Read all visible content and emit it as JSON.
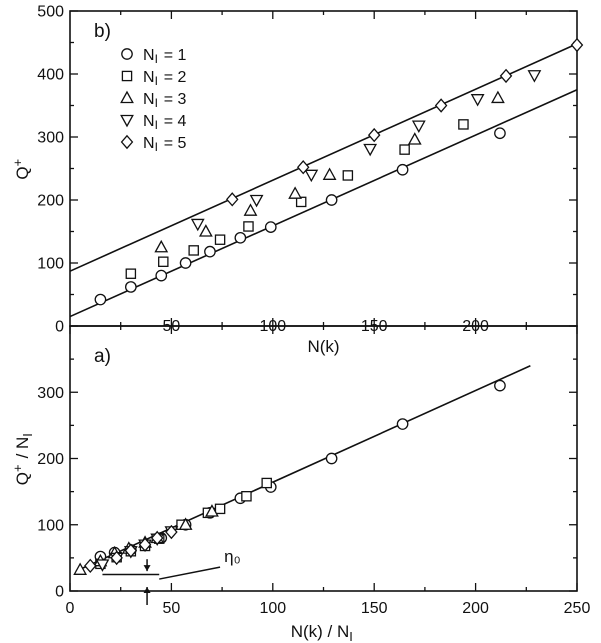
{
  "chart_data": [
    {
      "panel": "b)",
      "type": "scatter",
      "xlabel": "N(k)",
      "ylabel": "Q+",
      "xlim": [
        0,
        250
      ],
      "ylim": [
        0,
        500
      ],
      "xticks": [
        50,
        100,
        150,
        200
      ],
      "yticks": [
        0,
        100,
        200,
        300,
        400,
        500
      ],
      "legend_position": "top-left",
      "series": [
        {
          "name": "N_I = 1",
          "marker": "circle",
          "x": [
            15,
            30,
            45,
            57,
            69,
            84,
            99,
            129,
            164,
            212
          ],
          "y": [
            42,
            62,
            80,
            100,
            118,
            140,
            157,
            200,
            248,
            306
          ]
        },
        {
          "name": "N_I = 2",
          "marker": "square",
          "x": [
            30,
            46,
            61,
            74,
            88,
            114,
            137,
            165,
            194
          ],
          "y": [
            83,
            102,
            120,
            137,
            158,
            197,
            239,
            280,
            320
          ]
        },
        {
          "name": "N_I = 3",
          "marker": "triangle-up",
          "x": [
            45,
            67,
            89,
            111,
            128,
            170,
            211
          ],
          "y": [
            125,
            150,
            183,
            210,
            240,
            296,
            362
          ]
        },
        {
          "name": "N_I = 4",
          "marker": "triangle-down",
          "x": [
            63,
            92,
            119,
            148,
            172,
            201,
            229
          ],
          "y": [
            162,
            200,
            240,
            281,
            318,
            360,
            398
          ]
        },
        {
          "name": "N_I = 5",
          "marker": "diamond",
          "x": [
            80,
            115,
            150,
            183,
            215,
            250
          ],
          "y": [
            201,
            252,
            303,
            350,
            397,
            446
          ]
        }
      ],
      "lines": [
        {
          "x": [
            0,
            250
          ],
          "y": [
            87,
            448
          ]
        },
        {
          "x": [
            0,
            250
          ],
          "y": [
            15,
            375
          ]
        }
      ]
    },
    {
      "panel": "a)",
      "type": "scatter",
      "xlabel": "N(k) / N_I",
      "ylabel": "Q+ / N_I",
      "xlim": [
        0,
        250
      ],
      "ylim": [
        0,
        400
      ],
      "xticks": [
        0,
        50,
        100,
        150,
        200,
        250
      ],
      "yticks": [
        0,
        100,
        200,
        300
      ],
      "annotation": "η₀",
      "series": [
        {
          "name": "N_I = 1",
          "marker": "circle",
          "x": [
            15,
            22,
            30,
            45,
            57,
            69,
            84,
            99,
            129,
            164,
            212
          ],
          "y": [
            52,
            58,
            62,
            80,
            100,
            118,
            140,
            157,
            200,
            252,
            310
          ]
        },
        {
          "name": "N_I = 2",
          "marker": "square",
          "x": [
            15,
            23,
            30,
            37,
            44,
            55,
            68,
            74,
            87,
            97
          ],
          "y": [
            41,
            51,
            60,
            68,
            79,
            100,
            118,
            124,
            143,
            163
          ]
        },
        {
          "name": "N_I = 3",
          "marker": "triangle-up",
          "x": [
            5,
            15,
            22,
            29,
            37,
            43,
            57,
            70
          ],
          "y": [
            32,
            45,
            57,
            64,
            73,
            80,
            100,
            120
          ]
        },
        {
          "name": "N_I = 4",
          "marker": "triangle-down",
          "x": [
            16,
            23,
            30,
            37,
            43,
            50
          ],
          "y": [
            40,
            50,
            60,
            70,
            79,
            90
          ]
        },
        {
          "name": "N_I = 5",
          "marker": "diamond",
          "x": [
            10,
            23,
            30,
            37,
            43,
            50
          ],
          "y": [
            38,
            50,
            61,
            70,
            80,
            89
          ]
        }
      ],
      "lines": [
        {
          "x": [
            3,
            227
          ],
          "y": [
            30,
            340
          ]
        }
      ]
    }
  ]
}
